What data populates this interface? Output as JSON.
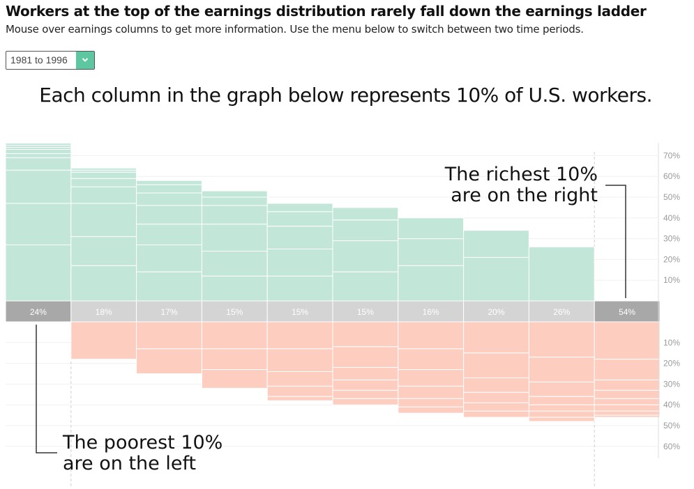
{
  "page": {
    "title": "Workers at the top of the earnings distribution rarely fall down the earnings ladder",
    "subtitle": "Mouse over earnings columns to get more information. Use the menu below to switch between two time periods.",
    "headline": "Each column in the graph below represents 10% of U.S. workers.",
    "period_select": {
      "selected": "1981 to 1996"
    }
  },
  "colors": {
    "up": "#c2e6d8",
    "down": "#fdcdbf",
    "stay": "#d4d4d4",
    "stay_highlight": "#a8a8a8",
    "accent": "#5dc7a2"
  },
  "annotations": {
    "richest": [
      "The richest 10%",
      "are on the right"
    ],
    "poorest": [
      "The poorest 10%",
      "are on the left"
    ]
  },
  "chart_data": {
    "type": "bar",
    "categories": [
      "1",
      "2",
      "3",
      "4",
      "5",
      "6",
      "7",
      "8",
      "9",
      "10"
    ],
    "stay_labels": [
      "24%",
      "18%",
      "17%",
      "15%",
      "15%",
      "15%",
      "16%",
      "20%",
      "26%",
      "54%"
    ],
    "stay_values": [
      24,
      18,
      17,
      15,
      15,
      15,
      16,
      20,
      26,
      54
    ],
    "up_totals": [
      76,
      64,
      58,
      53,
      47,
      45,
      40,
      34,
      26,
      0
    ],
    "down_totals": [
      0,
      18,
      25,
      32,
      38,
      40,
      44,
      46,
      48,
      46
    ],
    "up_segments": [
      [
        27,
        20,
        16,
        6,
        2,
        2,
        1,
        1,
        1
      ],
      [
        17,
        14,
        16,
        8,
        4,
        3,
        1,
        1
      ],
      [
        14,
        13,
        10,
        9,
        6,
        4,
        2
      ],
      [
        12,
        12,
        13,
        9,
        4,
        3
      ],
      [
        12,
        13,
        11,
        7,
        4
      ],
      [
        14,
        15,
        10,
        6
      ],
      [
        17,
        13,
        10
      ],
      [
        21,
        13
      ],
      [
        26
      ],
      []
    ],
    "down_segments": [
      [],
      [
        18
      ],
      [
        13,
        12
      ],
      [
        13,
        10,
        9
      ],
      [
        13,
        11,
        7,
        5,
        2
      ],
      [
        12,
        10,
        6,
        5,
        4,
        3
      ],
      [
        13,
        10,
        8,
        6,
        4,
        3
      ],
      [
        15,
        12,
        7,
        5,
        4,
        3
      ],
      [
        17,
        12,
        7,
        4,
        3,
        3,
        2
      ],
      [
        18,
        10,
        5,
        4,
        3,
        3,
        2,
        1
      ]
    ],
    "y_axis_up_ticks": [
      "10%",
      "20%",
      "30%",
      "40%",
      "50%",
      "60%",
      "70%"
    ],
    "y_axis_down_ticks": [
      "10%",
      "20%",
      "30%",
      "40%",
      "50%",
      "60%"
    ]
  }
}
